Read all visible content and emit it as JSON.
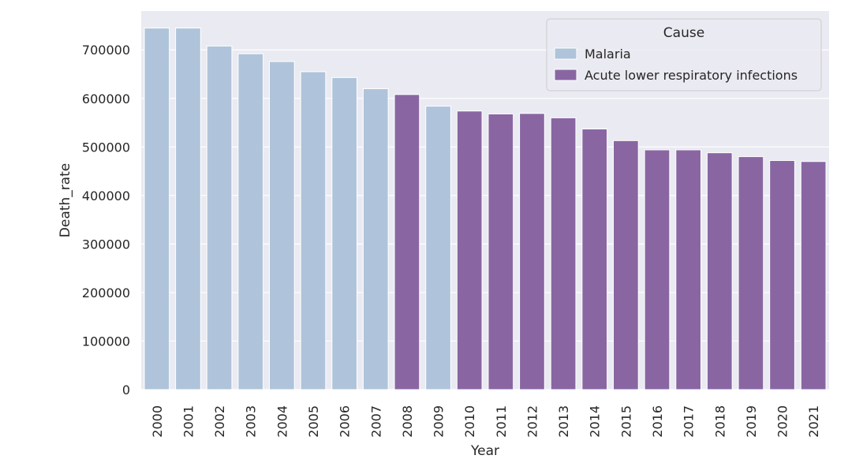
{
  "chart_data": {
    "type": "bar",
    "title": "",
    "xlabel": "Year",
    "ylabel": "Death_rate",
    "ylim": [
      0,
      780000
    ],
    "yticks": [
      0,
      100000,
      200000,
      300000,
      400000,
      500000,
      600000,
      700000
    ],
    "ytick_labels": [
      "0",
      "100000",
      "200000",
      "300000",
      "400000",
      "500000",
      "600000",
      "700000"
    ],
    "grid": true,
    "background": "#eaeaf2",
    "legend": {
      "title": "Cause",
      "position": "top-right",
      "entries": [
        {
          "name": "Malaria",
          "color": "#afc4da"
        },
        {
          "name": "Acute lower respiratory infections",
          "color": "#8966a2"
        }
      ]
    },
    "categories": [
      "2000",
      "2001",
      "2002",
      "2003",
      "2004",
      "2005",
      "2006",
      "2007",
      "2008",
      "2009",
      "2010",
      "2011",
      "2012",
      "2013",
      "2014",
      "2015",
      "2016",
      "2017",
      "2018",
      "2019",
      "2020",
      "2021"
    ],
    "values": [
      745000,
      745000,
      708000,
      692000,
      676000,
      655000,
      643000,
      620000,
      608000,
      584000,
      574000,
      568000,
      569000,
      560000,
      537000,
      513000,
      494000,
      494000,
      488000,
      480000,
      472000,
      470000
    ],
    "causes": [
      "Malaria",
      "Malaria",
      "Malaria",
      "Malaria",
      "Malaria",
      "Malaria",
      "Malaria",
      "Malaria",
      "Acute lower respiratory infections",
      "Malaria",
      "Acute lower respiratory infections",
      "Acute lower respiratory infections",
      "Acute lower respiratory infections",
      "Acute lower respiratory infections",
      "Acute lower respiratory infections",
      "Acute lower respiratory infections",
      "Acute lower respiratory infections",
      "Acute lower respiratory infections",
      "Acute lower respiratory infections",
      "Acute lower respiratory infections",
      "Acute lower respiratory infections",
      "Acute lower respiratory infections"
    ]
  }
}
